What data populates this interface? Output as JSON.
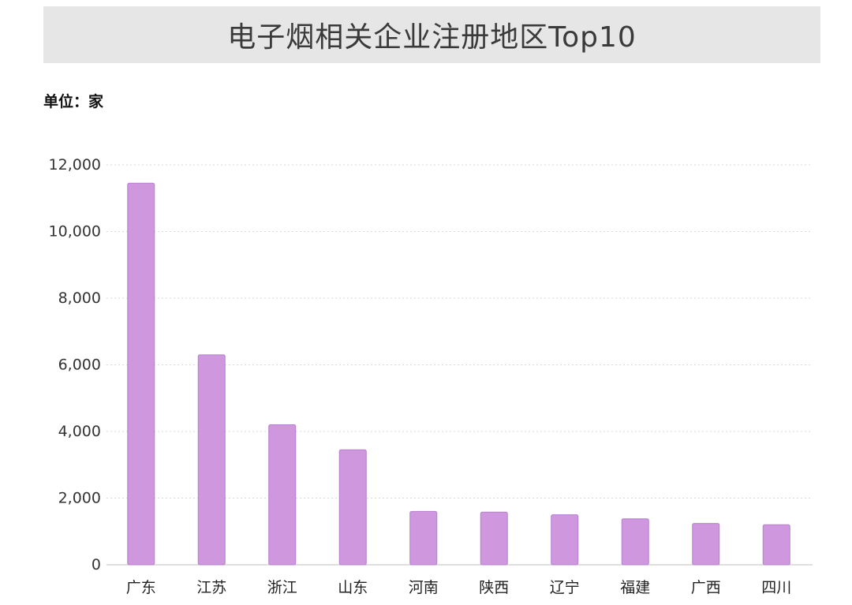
{
  "title": "电子烟相关企业注册地区Top10",
  "unit": "单位：家",
  "colors": {
    "bar": "#cf97dd",
    "title_bg": "#e6e6e6"
  },
  "chart_data": {
    "type": "bar",
    "categories": [
      "广东",
      "江苏",
      "浙江",
      "山东",
      "河南",
      "陕西",
      "辽宁",
      "福建",
      "广西",
      "四川"
    ],
    "values": [
      11450,
      6300,
      4200,
      3450,
      1600,
      1580,
      1500,
      1380,
      1240,
      1200
    ],
    "yticks": [
      "0",
      "2,000",
      "4,000",
      "6,000",
      "8,000",
      "10,000",
      "12,000"
    ],
    "ylim": [
      0,
      12000
    ],
    "grid": true,
    "legend": "none"
  }
}
